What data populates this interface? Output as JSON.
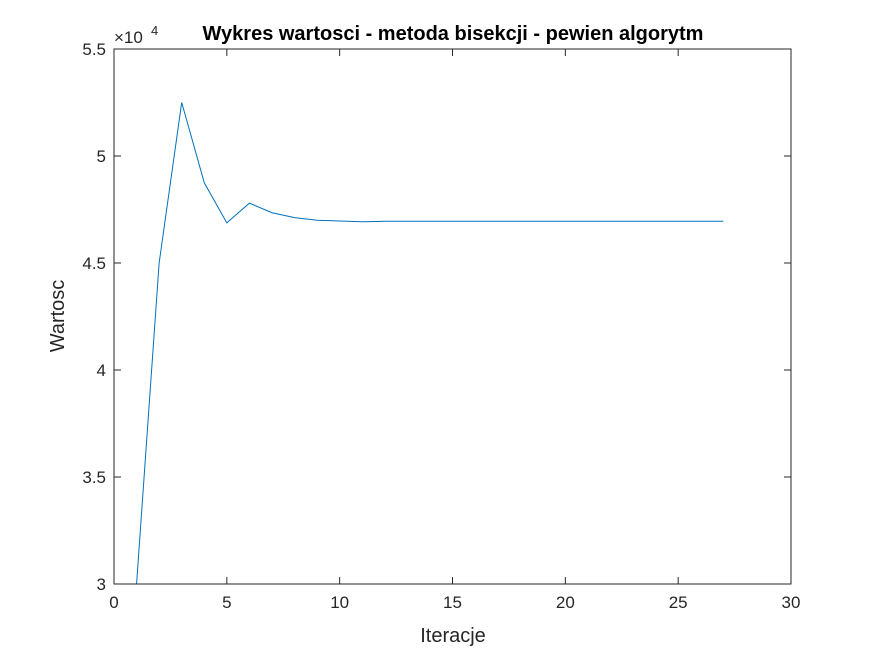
{
  "chart_data": {
    "type": "line",
    "title": "Wykres wartosci - metoda bisekcji - pewien algorytm",
    "xlabel": "Iteracje",
    "ylabel": "Wartosc",
    "y_exponent_base": "×10",
    "y_exponent_power": "4",
    "xlim": [
      0,
      30
    ],
    "ylim": [
      30000,
      55000
    ],
    "x_ticks": [
      0,
      5,
      10,
      15,
      20,
      25,
      30
    ],
    "x_tick_labels": [
      "0",
      "5",
      "10",
      "15",
      "20",
      "25",
      "30"
    ],
    "y_ticks": [
      30000,
      35000,
      40000,
      45000,
      50000,
      55000
    ],
    "y_tick_labels": [
      "3",
      "3.5",
      "4",
      "4.5",
      "5",
      "5.5"
    ],
    "grid": false,
    "legend": "none",
    "series": [
      {
        "color": "#0072BD",
        "x": [
          1,
          2,
          3,
          4,
          5,
          6,
          7,
          8,
          9,
          10,
          11,
          12,
          13,
          14,
          15,
          16,
          17,
          18,
          19,
          20,
          21,
          22,
          23,
          24,
          25,
          26,
          27
        ],
        "y": [
          30000,
          45000,
          52500,
          48750,
          46875,
          47800,
          47350,
          47120,
          47000,
          46960,
          46930,
          46950,
          46950,
          46950,
          46950,
          46950,
          46950,
          46950,
          46950,
          46950,
          46950,
          46950,
          46950,
          46950,
          46950,
          46950,
          46950
        ]
      }
    ]
  }
}
